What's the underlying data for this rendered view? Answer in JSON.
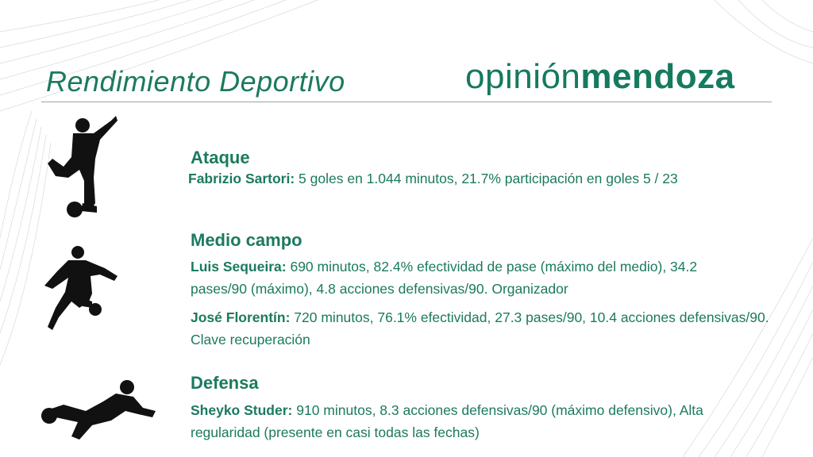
{
  "slide": {
    "title": "Rendimiento Deportivo",
    "logo": {
      "light": "opinión",
      "bold": "mendoza"
    },
    "accent_color": "#1b7a5f"
  },
  "sections": [
    {
      "heading": "Ataque",
      "icon": "soccer-player-striker-silhouette",
      "players": [
        {
          "name": "Fabrizio Sartori:",
          "text": " 5 goles en 1.044 minutos, 21.7% participación en goles 5 / 23"
        }
      ]
    },
    {
      "heading": "Medio campo",
      "icon": "soccer-player-dribbling-silhouette",
      "players": [
        {
          "name": "Luis Sequeira:",
          "text": " 690 minutos, 82.4% efectividad de pase (máximo del medio), 34.2 pases/90 (máximo), 4.8 acciones defensivas/90. Organizador"
        },
        {
          "name": "José Florentín:",
          "text": " 720 minutos, 76.1% efectividad, 27.3 pases/90, 10.4 acciones defensivas/90. Clave recuperación"
        }
      ]
    },
    {
      "heading": "Defensa",
      "icon": "soccer-player-slide-tackle-silhouette",
      "players": [
        {
          "name": "Sheyko Studer:",
          "text": " 910 minutos, 8.3 acciones defensivas/90 (máximo defensivo), Alta regularidad (presente en casi todas las fechas)"
        }
      ]
    }
  ]
}
